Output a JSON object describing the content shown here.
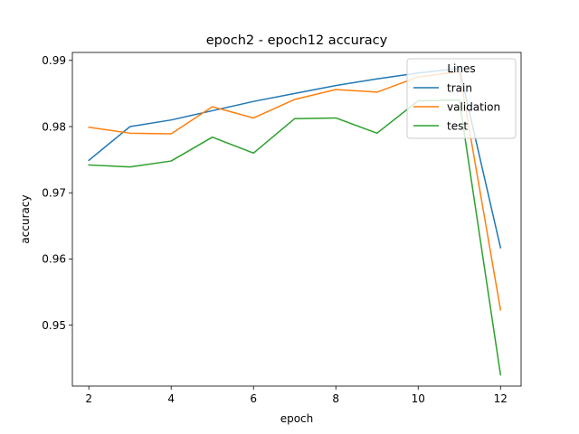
{
  "chart_data": {
    "type": "line",
    "title": "epoch2 - epoch12 accuracy",
    "xlabel": "epoch",
    "ylabel": "accuracy",
    "x": [
      2,
      3,
      4,
      5,
      6,
      7,
      8,
      9,
      10,
      11,
      12
    ],
    "xlim": [
      1.6,
      12.5
    ],
    "ylim": [
      0.9408,
      0.9912
    ],
    "xticks": [
      2,
      4,
      6,
      8,
      10,
      12
    ],
    "xtick_labels": [
      "2",
      "4",
      "6",
      "8",
      "10",
      "12"
    ],
    "yticks": [
      0.95,
      0.96,
      0.97,
      0.98,
      0.99
    ],
    "ytick_labels": [
      "0.95",
      "0.96",
      "0.97",
      "0.98",
      "0.99"
    ],
    "grid": false,
    "legend": {
      "title": "Lines",
      "placement": "top-right"
    },
    "series": [
      {
        "name": "train",
        "color": "#1f77b4",
        "values": [
          0.9749,
          0.98,
          0.981,
          0.9824,
          0.9838,
          0.985,
          0.9862,
          0.9872,
          0.9881,
          0.9888,
          0.9617
        ]
      },
      {
        "name": "validation",
        "color": "#ff7f0e",
        "values": [
          0.9799,
          0.979,
          0.9789,
          0.983,
          0.9813,
          0.9841,
          0.9856,
          0.9852,
          0.9875,
          0.9883,
          0.9523
        ]
      },
      {
        "name": "test",
        "color": "#2ca02c",
        "values": [
          0.9742,
          0.9739,
          0.9748,
          0.9784,
          0.976,
          0.9812,
          0.9813,
          0.979,
          0.9839,
          0.984,
          0.9425
        ]
      }
    ]
  }
}
